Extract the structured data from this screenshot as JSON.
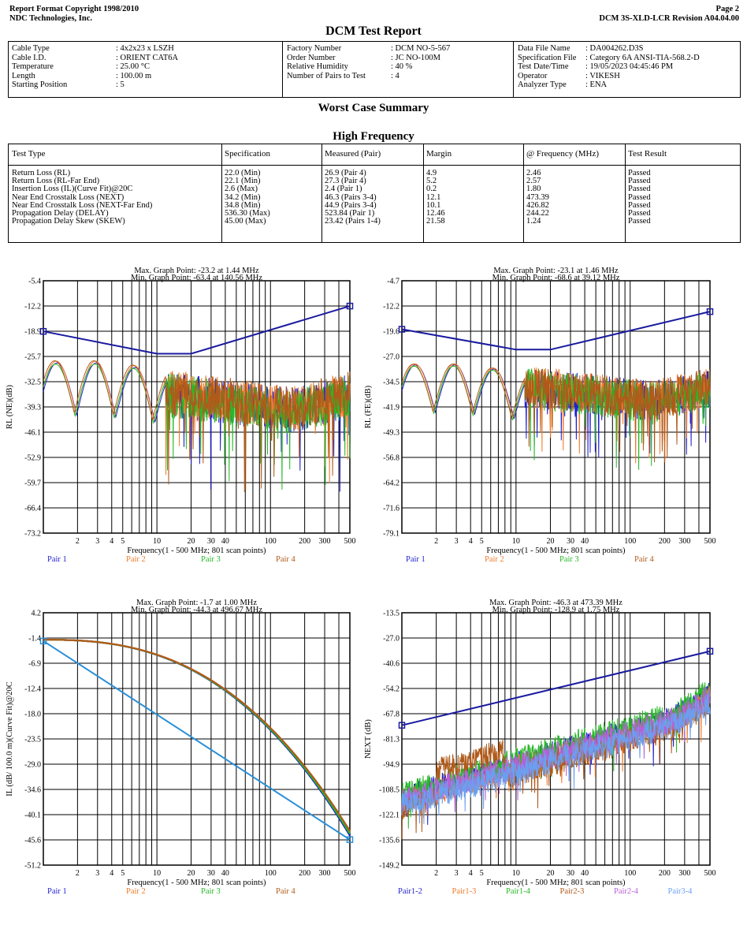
{
  "header": {
    "left_line1": "Report Format Copyright 1998/2010",
    "left_line2": "NDC Technologies, Inc.",
    "right_line1": "Page 2",
    "right_line2": "DCM 3S-XLD-LCR Revision A04.04.00"
  },
  "report_title": "DCM Test Report",
  "info": {
    "col1": [
      {
        "label": "Cable Type",
        "value": ": 4x2x23 x LSZH"
      },
      {
        "label": "Cable I.D.",
        "value": ": ORIENT  CAT6A"
      },
      {
        "label": "Temperature",
        "value": ": 25.00 °C"
      },
      {
        "label": "Length",
        "value": ": 100.00 m"
      },
      {
        "label": "Starting Position",
        "value": ": 5"
      }
    ],
    "col2": [
      {
        "label": "Factory Number",
        "value": ": DCM NO-5-567"
      },
      {
        "label": "Order Number",
        "value": ": JC NO-100M"
      },
      {
        "label": "Relative Humidity",
        "value": ": 40 %"
      },
      {
        "label": "Number of Pairs to Test",
        "value": ": 4"
      }
    ],
    "col3": [
      {
        "label": "Data File Name",
        "value": ": DA004262.D3S"
      },
      {
        "label": "Specification File",
        "value": ": Category 6A ANSI-TIA-568.2-D"
      },
      {
        "label": "Test Date/Time",
        "value": ": 19/05/2023 04:45:46 PM"
      },
      {
        "label": "Operator",
        "value": ": VIKESH"
      },
      {
        "label": "Analyzer Type",
        "value": ": ENA"
      }
    ]
  },
  "worst_case_title": "Worst Case Summary",
  "high_freq_title": "High Frequency",
  "summary_table": {
    "headers": [
      "Test Type",
      "Specification",
      "Measured (Pair)",
      "Margin",
      "@ Frequency (MHz)",
      "Test Result"
    ],
    "rows": [
      [
        "Return Loss (RL)",
        "22.0 (Min)",
        "26.9 (Pair 4)",
        "4.9",
        "2.46",
        "Passed"
      ],
      [
        "Return Loss (RL-Far End)",
        "22.1 (Min)",
        "27.3 (Pair 4)",
        "5.2",
        "2.57",
        "Passed"
      ],
      [
        "Insertion Loss (IL)(Curve Fit)@20C",
        "2.6 (Max)",
        "2.4 (Pair 1)",
        "0.2",
        "1.80",
        "Passed"
      ],
      [
        "Near End Crosstalk Loss (NEXT)",
        "34.2 (Min)",
        "46.3 (Pairs 3-4)",
        "12.1",
        "473.39",
        "Passed"
      ],
      [
        "Near End Crosstalk Loss (NEXT-Far End)",
        "34.8 (Min)",
        "44.9 (Pairs 3-4)",
        "10.1",
        "426.82",
        "Passed"
      ],
      [
        "Propagation Delay (DELAY)",
        "536.30 (Max)",
        "523.84 (Pair 1)",
        "12.46",
        "244.22",
        "Passed"
      ],
      [
        "Propagation Delay Skew (SKEW)",
        "45.00 (Max)",
        "23.42 (Pairs 1-4)",
        "21.58",
        "1.24",
        "Passed"
      ]
    ]
  },
  "chart_data": [
    {
      "type": "line",
      "title": "Max. Graph Point: -23.2 at 1.44 MHz",
      "subtitle": "Min. Graph Point: -63.4 at 140.56 MHz",
      "ylabel": "RL (NE)(dB)",
      "xlabel": "Frequency(1 - 500 MHz; 801 scan points)",
      "x_scale": "log",
      "xlim": [
        1,
        500
      ],
      "ylim": [
        -73.2,
        -5.4
      ],
      "yticks": [
        "-5.4",
        "-12.2",
        "-18.9",
        "-25.7",
        "-32.5",
        "-39.3",
        "-46.1",
        "-52.9",
        "-59.7",
        "-66.4",
        "-73.2"
      ],
      "xticks": [
        "2",
        "3",
        "4",
        "5",
        "10",
        "20",
        "30",
        "40",
        "100",
        "200",
        "300",
        "500"
      ],
      "limit": {
        "x": [
          1,
          10,
          20,
          500
        ],
        "y": [
          -19.0,
          -25.0,
          -25.0,
          -12.2
        ]
      },
      "legend": [
        {
          "name": "Pair 1",
          "color": "#1f1fd0"
        },
        {
          "name": "Pair 2",
          "color": "#f07a2a"
        },
        {
          "name": "Pair 3",
          "color": "#27b827"
        },
        {
          "name": "Pair 4",
          "color": "#b05a1a"
        }
      ],
      "series": [
        {
          "name": "Pair 1",
          "base_db": 27.5,
          "ripple": 8
        },
        {
          "name": "Pair 2",
          "base_db": 27.0,
          "ripple": 8
        },
        {
          "name": "Pair 3",
          "base_db": 27.8,
          "ripple": 8
        },
        {
          "name": "Pair 4",
          "base_db": 26.9,
          "ripple": 8
        }
      ],
      "kind": "rl"
    },
    {
      "type": "line",
      "title": "Max. Graph Point: -23.1 at 1.46 MHz",
      "subtitle": "Min. Graph Point: -68.6 at 39.12 MHz",
      "ylabel": "RL (FE)(dB)",
      "xlabel": "Frequency(1 - 500 MHz; 801 scan points)",
      "x_scale": "log",
      "xlim": [
        1,
        500
      ],
      "ylim": [
        -79.1,
        -4.7
      ],
      "yticks": [
        "-4.7",
        "-12.2",
        "-19.6",
        "-27.0",
        "-34.5",
        "-41.9",
        "-49.3",
        "-56.8",
        "-64.2",
        "-71.6",
        "-79.1"
      ],
      "xticks": [
        "2",
        "3",
        "4",
        "5",
        "10",
        "20",
        "30",
        "40",
        "100",
        "200",
        "300",
        "500"
      ],
      "limit": {
        "x": [
          1,
          10,
          20,
          500
        ],
        "y": [
          -19.0,
          -25.0,
          -25.0,
          -13.8
        ]
      },
      "legend": [
        {
          "name": "Pair 1",
          "color": "#1f1fd0"
        },
        {
          "name": "Pair 2",
          "color": "#f07a2a"
        },
        {
          "name": "Pair 3",
          "color": "#27b827"
        },
        {
          "name": "Pair 4",
          "color": "#b05a1a"
        }
      ],
      "series": [
        {
          "name": "Pair 1",
          "base_db": 27.5,
          "ripple": 8
        },
        {
          "name": "Pair 2",
          "base_db": 27.2,
          "ripple": 8
        },
        {
          "name": "Pair 3",
          "base_db": 27.9,
          "ripple": 8
        },
        {
          "name": "Pair 4",
          "base_db": 27.3,
          "ripple": 8
        }
      ],
      "kind": "rl"
    },
    {
      "type": "line",
      "title": "Max. Graph Point: -1.7 at 1.00 MHz",
      "subtitle": "Min. Graph Point: -44.3 at 496.67 MHz",
      "ylabel": "IL (dB/ 100.0 m)(Curve Fit)@20C",
      "xlabel": "Frequency(1 - 500 MHz; 801 scan points)",
      "x_scale": "log",
      "xlim": [
        1,
        500
      ],
      "ylim": [
        -51.2,
        4.2
      ],
      "yticks": [
        "4.2",
        "-1.4",
        "-6.9",
        "-12.4",
        "-18.0",
        "-23.5",
        "-29.0",
        "-34.6",
        "-40.1",
        "-45.6",
        "-51.2"
      ],
      "xticks": [
        "2",
        "3",
        "4",
        "5",
        "10",
        "20",
        "30",
        "40",
        "100",
        "200",
        "300",
        "500"
      ],
      "limit": {
        "x": [
          1,
          500
        ],
        "y": [
          -2.0,
          -45.6
        ]
      },
      "legend": [
        {
          "name": "Pair 1",
          "color": "#1f1fd0"
        },
        {
          "name": "Pair 2",
          "color": "#f07a2a"
        },
        {
          "name": "Pair 3",
          "color": "#27b827"
        },
        {
          "name": "Pair 4",
          "color": "#b05a1a"
        }
      ],
      "series": [
        {
          "name": "Pair 1",
          "end_db": -44.3
        },
        {
          "name": "Pair 2",
          "end_db": -43.6
        },
        {
          "name": "Pair 3",
          "end_db": -43.9
        },
        {
          "name": "Pair 4",
          "end_db": -43.3
        }
      ],
      "kind": "il"
    },
    {
      "type": "line",
      "title": "Max. Graph Point: -46.3 at 473.39 MHz",
      "subtitle": "Min. Graph Point: -128.9 at 1.75 MHz",
      "ylabel": "NEXT (dB)",
      "xlabel": "Frequency(1 - 500 MHz; 801 scan points)",
      "x_scale": "log",
      "xlim": [
        1,
        500
      ],
      "ylim": [
        -149.2,
        -13.5
      ],
      "yticks": [
        "-13.5",
        "-27.0",
        "-40.6",
        "-54.2",
        "-67.8",
        "-81.3",
        "-94.9",
        "-108.5",
        "-122.1",
        "-135.6",
        "-149.2"
      ],
      "xticks": [
        "2",
        "3",
        "4",
        "5",
        "10",
        "20",
        "30",
        "40",
        "100",
        "200",
        "300",
        "500"
      ],
      "limit": {
        "x": [
          1,
          500
        ],
        "y": [
          -74.0,
          -34.2
        ]
      },
      "legend": [
        {
          "name": "Pair1-2",
          "color": "#1f1fd0"
        },
        {
          "name": "Pair1-3",
          "color": "#f07a2a"
        },
        {
          "name": "Pair1-4",
          "color": "#27b827"
        },
        {
          "name": "Pair2-3",
          "color": "#b05a1a"
        },
        {
          "name": "Pair2-4",
          "color": "#b860d8"
        },
        {
          "name": "Pair3-4",
          "color": "#6aa0f0"
        }
      ],
      "series": [
        {
          "name": "Pair1-2",
          "offset": 2
        },
        {
          "name": "Pair1-3",
          "offset": 0
        },
        {
          "name": "Pair1-4",
          "offset": 4
        },
        {
          "name": "Pair2-3",
          "offset": -3
        },
        {
          "name": "Pair2-4",
          "offset": 1
        },
        {
          "name": "Pair3-4",
          "offset": -2
        }
      ],
      "kind": "next"
    }
  ]
}
